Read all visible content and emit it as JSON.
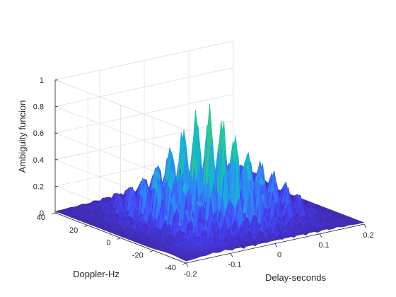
{
  "chart_data": {
    "type": "surface3d",
    "title": "",
    "xlabel": "Delay-seconds",
    "ylabel": "Doppler-Hz",
    "zlabel": "Ambiguity funcion",
    "x_ticks": [
      -0.2,
      -0.1,
      0,
      0.1,
      0.2
    ],
    "y_ticks": [
      -40,
      -20,
      0,
      20,
      40
    ],
    "z_ticks": [
      0,
      0.2,
      0.4,
      0.6,
      0.8,
      1
    ],
    "x_tick_labels": [
      "-0.2",
      "-0.1",
      "0",
      "0.1",
      "0.2"
    ],
    "y_tick_labels": [
      "-40",
      "-20",
      "0",
      "20",
      "40"
    ],
    "z_tick_labels": [
      "0",
      "0.2",
      "0.4",
      "0.6",
      "0.8",
      "1"
    ],
    "xlim": [
      -0.2,
      0.2
    ],
    "ylim": [
      -40,
      40
    ],
    "zlim": [
      0,
      1
    ],
    "peak": {
      "x": 0,
      "y": 0,
      "z": 0.85
    },
    "grid": true,
    "box": "open",
    "colormap": [
      "#3e26a8",
      "#4743f8",
      "#2e87f7",
      "#1cafdf",
      "#0fbfb8",
      "#38c98b",
      "#7fcd56",
      "#c3c33a",
      "#f6c13a",
      "#f9fb15"
    ]
  }
}
